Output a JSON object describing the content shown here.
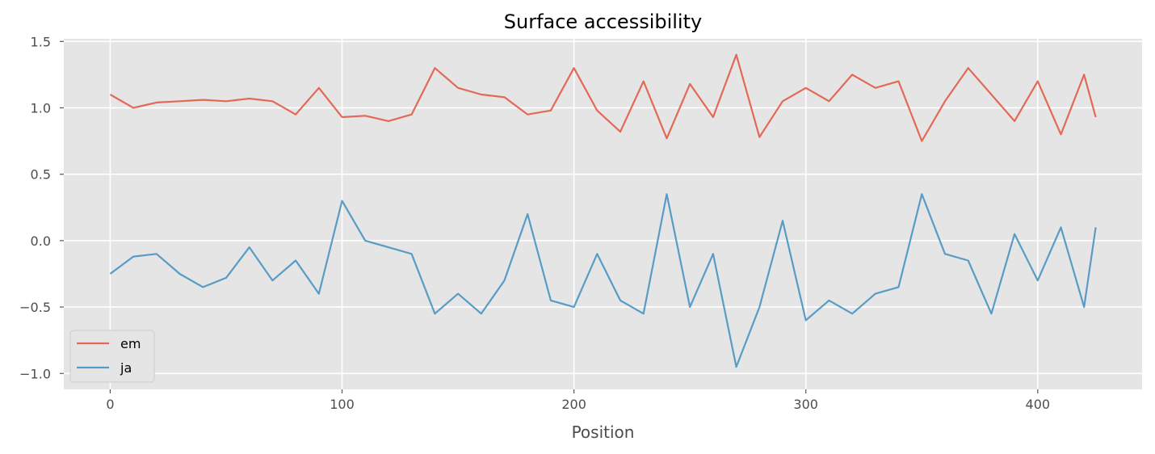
{
  "chart_data": {
    "type": "line",
    "title": "Surface accessibility",
    "xlabel": "Position",
    "ylabel": "",
    "xlim": [
      -20,
      445
    ],
    "ylim": [
      -1.12,
      1.52
    ],
    "xticks": [
      0,
      100,
      200,
      300,
      400
    ],
    "xtick_labels": [
      "0",
      "100",
      "200",
      "300",
      "400"
    ],
    "yticks": [
      1.5,
      1.0,
      0.5,
      0.0,
      -0.5,
      -1.0
    ],
    "ytick_labels": [
      "1.5",
      "1.0",
      "0.5",
      "0.0",
      "−0.5",
      "−1.0"
    ],
    "grid": true,
    "legend_position": "lower-left",
    "background_color": "#e5e5e5",
    "grid_color": "#ffffff",
    "x": [
      0,
      10,
      20,
      30,
      40,
      50,
      60,
      70,
      80,
      90,
      100,
      110,
      120,
      130,
      140,
      150,
      160,
      170,
      180,
      190,
      200,
      210,
      220,
      230,
      240,
      250,
      260,
      270,
      280,
      290,
      300,
      310,
      320,
      330,
      340,
      350,
      360,
      370,
      380,
      390,
      400,
      410,
      420,
      425
    ],
    "series": [
      {
        "name": "em",
        "color": "#e24a33",
        "values": [
          1.1,
          1.0,
          1.04,
          1.05,
          1.06,
          1.05,
          1.07,
          1.05,
          0.95,
          1.15,
          0.93,
          0.94,
          0.9,
          0.95,
          1.3,
          1.15,
          1.1,
          1.08,
          0.95,
          0.98,
          1.3,
          0.98,
          0.82,
          1.2,
          0.77,
          1.18,
          0.93,
          1.4,
          0.78,
          1.05,
          1.15,
          1.05,
          1.25,
          1.15,
          1.2,
          0.75,
          1.05,
          1.3,
          1.1,
          0.9,
          1.2,
          0.8,
          1.25,
          0.93
        ]
      },
      {
        "name": "ja",
        "color": "#348abd",
        "values": [
          -0.25,
          -0.12,
          -0.1,
          -0.25,
          -0.35,
          -0.28,
          -0.05,
          -0.3,
          -0.15,
          -0.4,
          0.3,
          0.0,
          -0.05,
          -0.1,
          -0.55,
          -0.4,
          -0.55,
          -0.3,
          0.2,
          -0.45,
          -0.5,
          -0.1,
          -0.45,
          -0.55,
          0.35,
          -0.5,
          -0.1,
          -0.95,
          -0.5,
          0.15,
          -0.6,
          -0.45,
          -0.55,
          -0.4,
          -0.35,
          0.35,
          -0.1,
          -0.15,
          -0.55,
          0.05,
          -0.3,
          0.1,
          -0.5,
          0.1
        ]
      }
    ]
  }
}
